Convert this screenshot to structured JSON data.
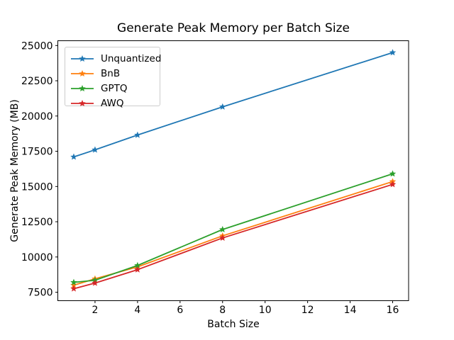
{
  "window": {
    "background": "#ffffff"
  },
  "chart_data": {
    "type": "line",
    "title": "Generate Peak Memory per Batch Size",
    "xlabel": "Batch Size",
    "ylabel": "Generate Peak Memory (MB)",
    "x": [
      1,
      2,
      4,
      8,
      16
    ],
    "series": [
      {
        "name": "Unquantized",
        "color": "#1f77b4",
        "values": [
          17100,
          17600,
          18650,
          20650,
          24500
        ]
      },
      {
        "name": "BnB",
        "color": "#ff7f0e",
        "values": [
          8000,
          8450,
          9300,
          11500,
          15350
        ]
      },
      {
        "name": "GPTQ",
        "color": "#2ca02c",
        "values": [
          8200,
          8350,
          9400,
          11950,
          15900
        ]
      },
      {
        "name": "AWQ",
        "color": "#d62728",
        "values": [
          7750,
          8150,
          9100,
          11350,
          15150
        ]
      }
    ],
    "marker": "star",
    "x_ticks": [
      2,
      4,
      6,
      8,
      10,
      12,
      14,
      16
    ],
    "y_ticks": [
      7500,
      10000,
      12500,
      15000,
      17500,
      20000,
      22500,
      25000
    ],
    "xlim": [
      0.25,
      16.75
    ],
    "ylim": [
      6900,
      25340
    ],
    "grid": false,
    "legend_position": "upper-left",
    "axis_color": "#000000",
    "text_color": "#000000"
  }
}
